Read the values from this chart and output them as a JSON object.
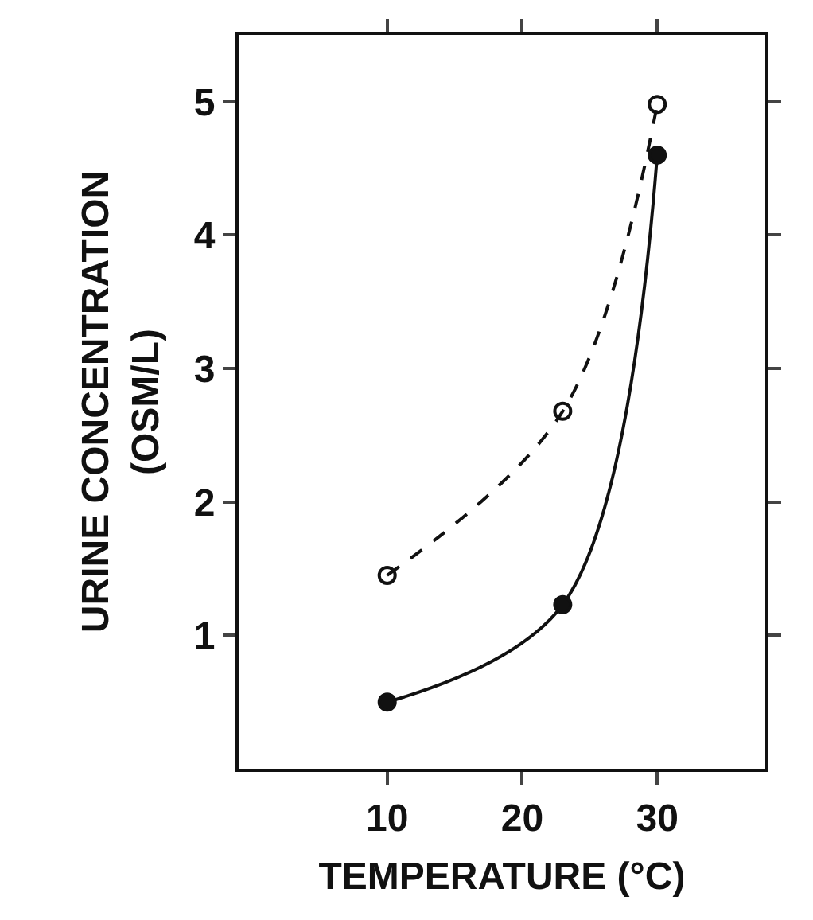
{
  "chart_data": {
    "type": "line",
    "xlabel": "TEMPERATURE (°C)",
    "ylabel": "URINE CONCENTRATION\n(OSM/L)",
    "xlim": [
      -1,
      38
    ],
    "ylim": [
      0,
      5.5
    ],
    "xticks": [
      10,
      20,
      30
    ],
    "yticks": [
      1,
      2,
      3,
      4,
      5
    ],
    "legend": false,
    "series": [
      {
        "color": "#111111",
        "x": [
          10,
          23,
          30
        ],
        "values": [
          1.45,
          2.68,
          4.98
        ],
        "line_style": "dashed",
        "marker": "circle-open"
      },
      {
        "color": "#111111",
        "x": [
          10,
          23,
          30
        ],
        "values": [
          0.5,
          1.23,
          4.6
        ],
        "line_style": "solid",
        "marker": "circle"
      }
    ]
  }
}
